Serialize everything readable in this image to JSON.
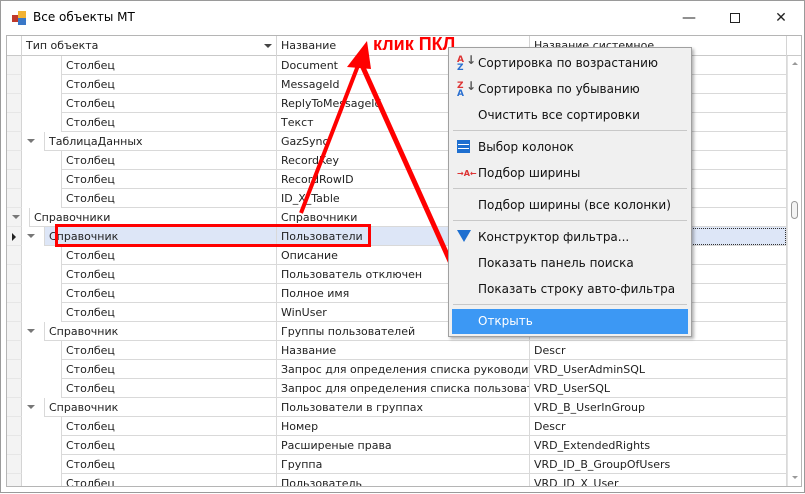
{
  "window": {
    "title": "Все объекты МТ",
    "minimize_icon": "minimize-icon",
    "maximize_icon": "maximize-icon",
    "close_icon": "close-icon"
  },
  "grid": {
    "columns": [
      "Тип объекта",
      "Название",
      "Название системное"
    ],
    "rows": [
      {
        "level": 3,
        "type": "Столбец",
        "name": "Document",
        "sys": ""
      },
      {
        "level": 3,
        "type": "Столбец",
        "name": "MessageId",
        "sys": ""
      },
      {
        "level": 3,
        "type": "Столбец",
        "name": "ReplyToMessageId",
        "sys": ""
      },
      {
        "level": 3,
        "type": "Столбец",
        "name": "Текст",
        "sys": ""
      },
      {
        "level": 2,
        "type": "ТаблицаДанных",
        "name": "GazSync",
        "sys": "",
        "expanded": true
      },
      {
        "level": 3,
        "type": "Столбец",
        "name": "RecordKey",
        "sys": ""
      },
      {
        "level": 3,
        "type": "Столбец",
        "name": "RecordRowID",
        "sys": ""
      },
      {
        "level": 3,
        "type": "Столбец",
        "name": "ID_X_Table",
        "sys": ""
      },
      {
        "level": 1,
        "type": "Справочники",
        "name": "Справочники",
        "sys": "",
        "expanded": true
      },
      {
        "level": 2,
        "type": "Справочник",
        "name": "Пользователи",
        "sys": "",
        "expanded": true,
        "selected": true
      },
      {
        "level": 3,
        "type": "Столбец",
        "name": "Описание",
        "sys": ""
      },
      {
        "level": 3,
        "type": "Столбец",
        "name": "Пользователь отключен",
        "sys": ""
      },
      {
        "level": 3,
        "type": "Столбец",
        "name": "Полное имя",
        "sys": ""
      },
      {
        "level": 3,
        "type": "Столбец",
        "name": "WinUser",
        "sys": ""
      },
      {
        "level": 2,
        "type": "Справочник",
        "name": "Группы пользователей",
        "sys": "",
        "expanded": true
      },
      {
        "level": 3,
        "type": "Столбец",
        "name": "Название",
        "sys": "Descr"
      },
      {
        "level": 3,
        "type": "Столбец",
        "name": "Запрос для определения списка руководителей",
        "sys": "VRD_UserAdminSQL"
      },
      {
        "level": 3,
        "type": "Столбец",
        "name": "Запрос для определения списка пользователей",
        "sys": "VRD_UserSQL"
      },
      {
        "level": 2,
        "type": "Справочник",
        "name": "Пользователи в группах",
        "sys": "VRD_B_UserInGroup",
        "expanded": true
      },
      {
        "level": 3,
        "type": "Столбец",
        "name": "Номер",
        "sys": "Descr"
      },
      {
        "level": 3,
        "type": "Столбец",
        "name": "Расширеные права",
        "sys": "VRD_ExtendedRights"
      },
      {
        "level": 3,
        "type": "Столбец",
        "name": "Группа",
        "sys": "VRD_ID_B_GroupOfUsers"
      },
      {
        "level": 3,
        "type": "Столбец",
        "name": "Пользователь",
        "sys": "VRD_ID_X_User"
      }
    ]
  },
  "context_menu": {
    "items": [
      {
        "label": "Сортировка по возрастанию",
        "icon": "sort-ascending-icon"
      },
      {
        "label": "Сортировка по убыванию",
        "icon": "sort-descending-icon"
      },
      {
        "label": "Очистить все сортировки",
        "icon": ""
      },
      {
        "label": "Выбор колонок",
        "icon": "column-chooser-icon"
      },
      {
        "label": "Подбор ширины",
        "icon": "best-fit-icon"
      },
      {
        "label": "Подбор ширины (все колонки)",
        "icon": ""
      },
      {
        "label": "Конструктор фильтра...",
        "icon": "filter-icon"
      },
      {
        "label": "Показать панель поиска",
        "icon": ""
      },
      {
        "label": "Показать строку авто-фильтра",
        "icon": ""
      },
      {
        "label": "Открыть",
        "icon": "",
        "highlighted": true
      }
    ]
  },
  "annotation": {
    "text": "клик ПКЛ",
    "color": "#ff0000"
  },
  "colors": {
    "selection": "#dde6f7",
    "menu_highlight": "#3c98f4",
    "annotation": "#ff0000"
  }
}
